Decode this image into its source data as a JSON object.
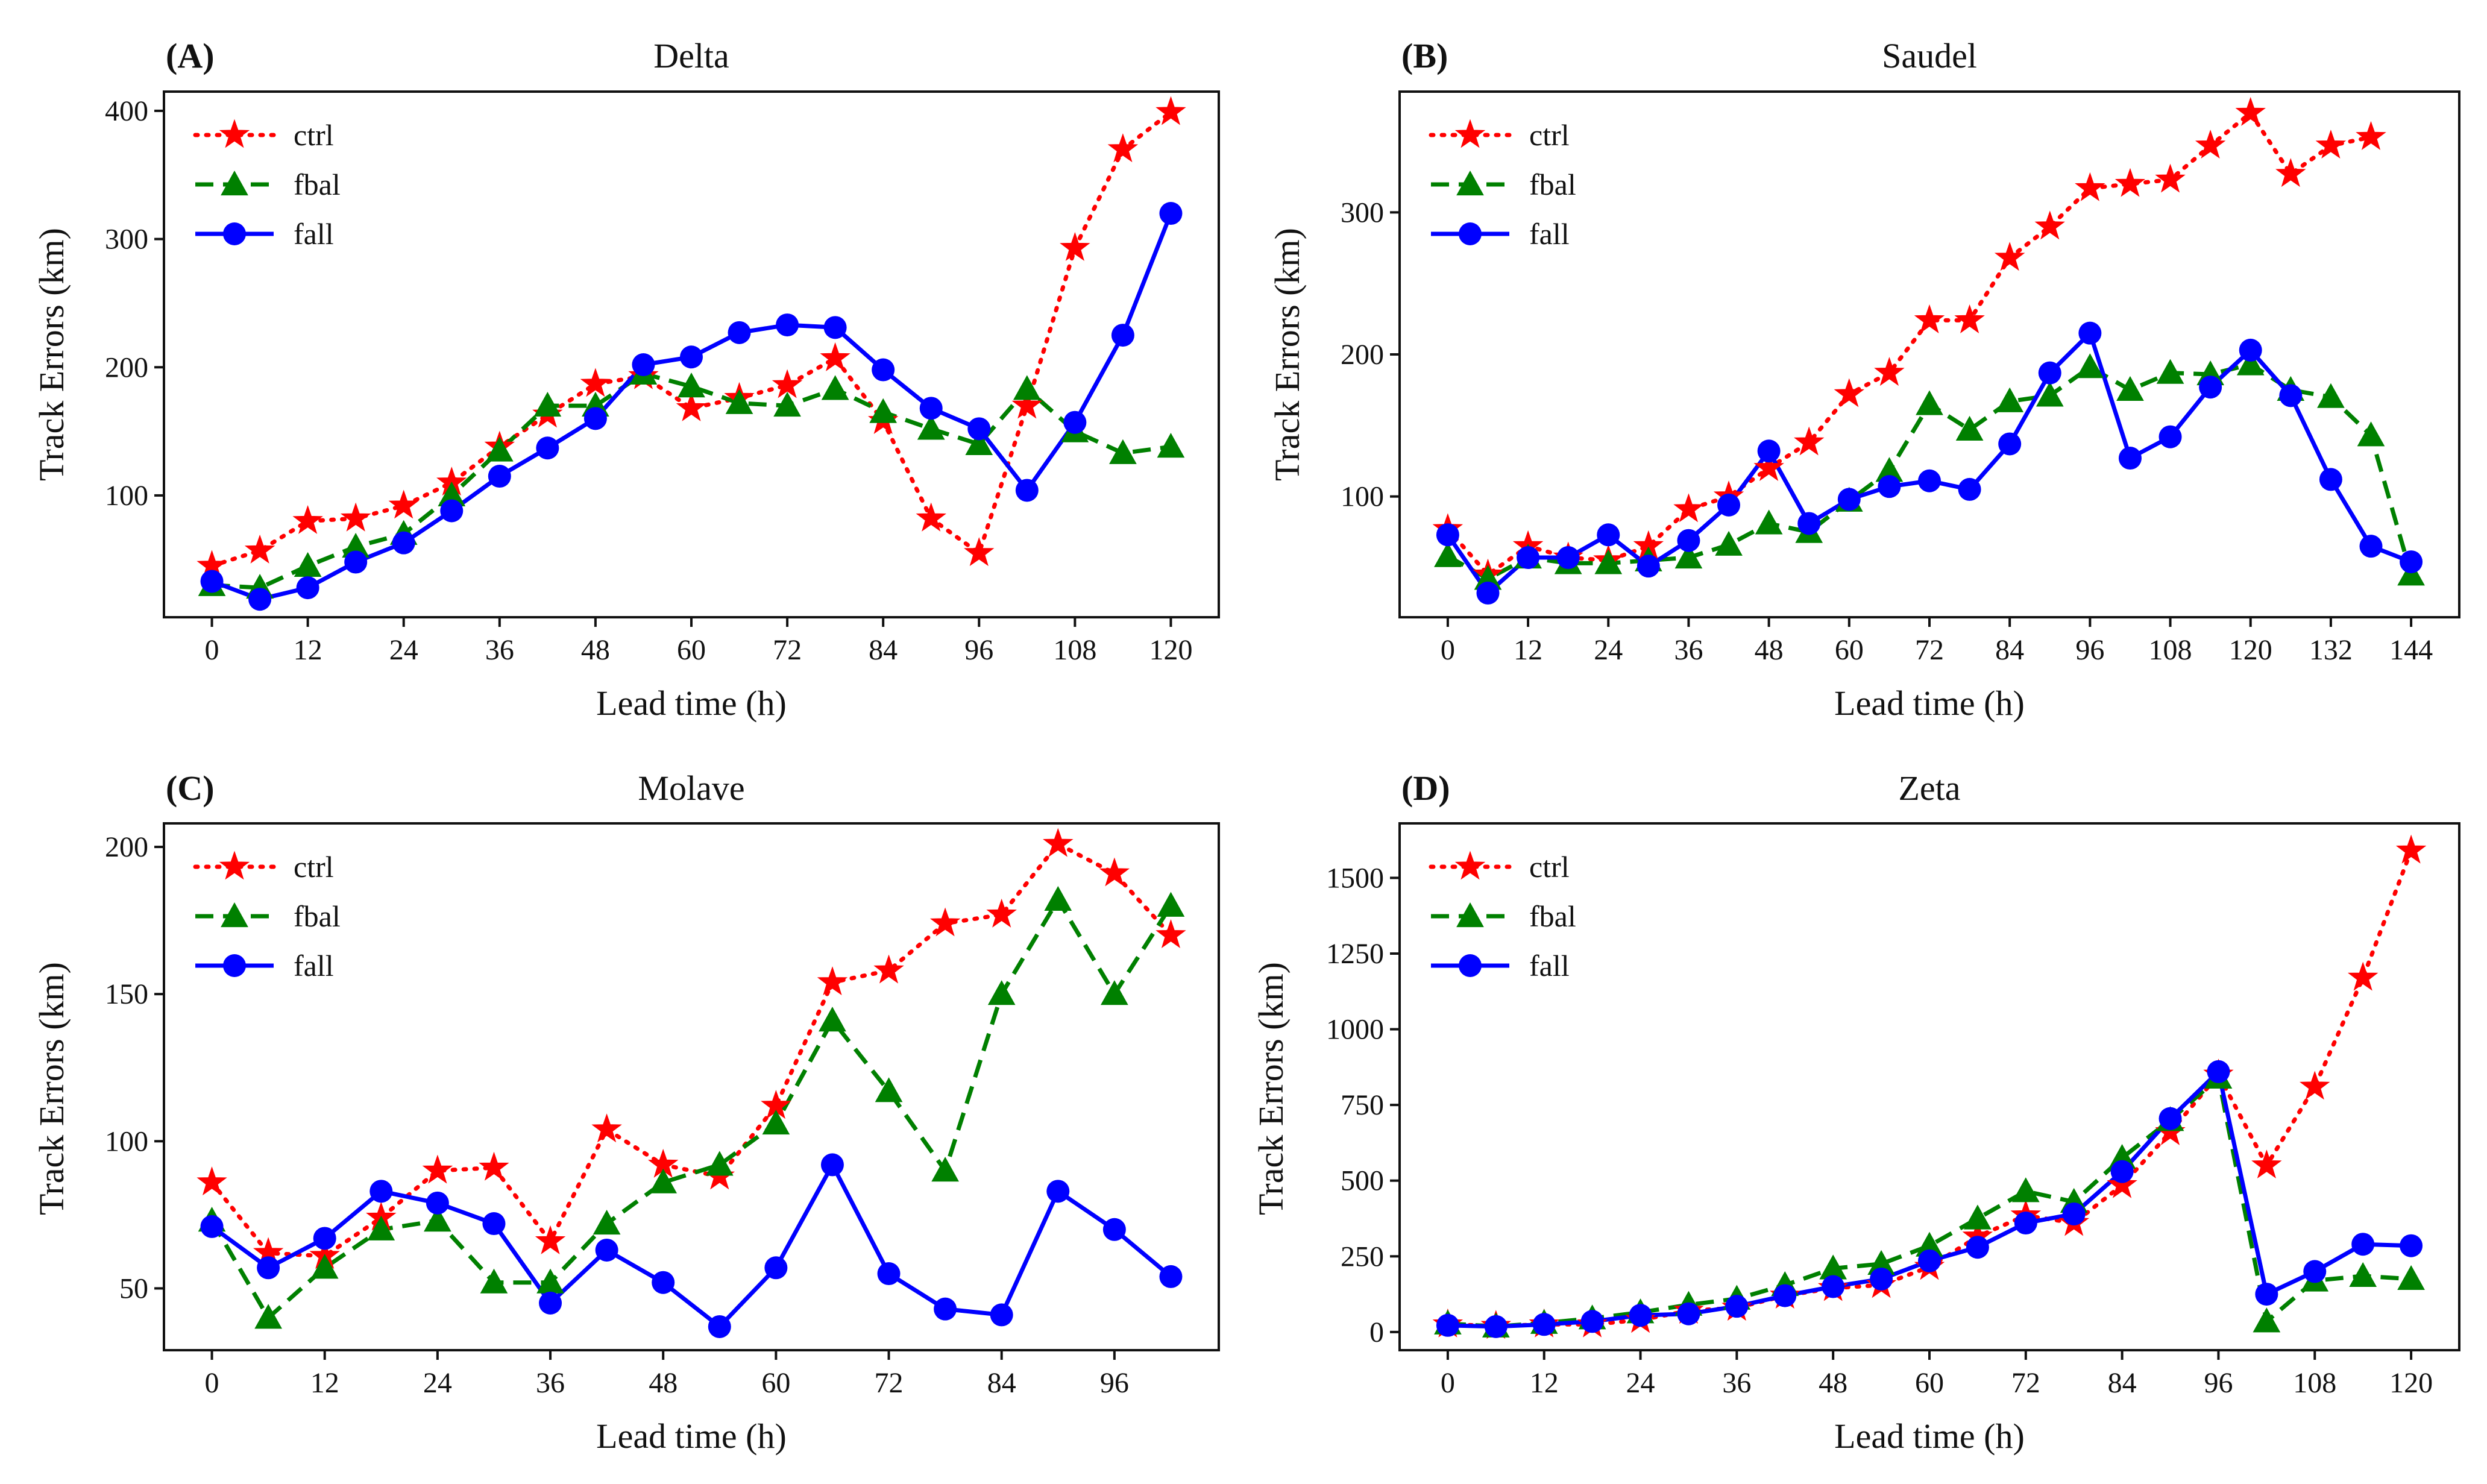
{
  "chart_data": [
    {
      "panel": "(A)",
      "title": "Delta",
      "type": "line",
      "xlabel": "Lead time (h)",
      "ylabel": "Track Errors (km)",
      "xlim": [
        -6,
        126
      ],
      "ylim": [
        5,
        415
      ],
      "xticks": [
        0,
        12,
        24,
        36,
        48,
        60,
        72,
        84,
        96,
        108,
        120
      ],
      "yticks": [
        100,
        200,
        300,
        400
      ],
      "x": [
        0,
        6,
        12,
        18,
        24,
        30,
        36,
        42,
        48,
        54,
        60,
        66,
        72,
        78,
        84,
        90,
        96,
        102,
        108,
        114,
        120
      ],
      "legend_position": "top-left",
      "series": [
        {
          "name": "ctrl",
          "color": "#ff0000",
          "marker": "star",
          "style": "dotted",
          "values": [
            45,
            57,
            80,
            82,
            92,
            110,
            138,
            163,
            187,
            193,
            168,
            176,
            186,
            207,
            158,
            82,
            55,
            170,
            293,
            370,
            399
          ]
        },
        {
          "name": "fbal",
          "color": "#008000",
          "marker": "triangle",
          "style": "dashed",
          "values": [
            30,
            28,
            45,
            60,
            70,
            100,
            135,
            170,
            170,
            195,
            185,
            172,
            170,
            183,
            165,
            152,
            140,
            183,
            150,
            133,
            138
          ]
        },
        {
          "name": "fall",
          "color": "#0000ff",
          "marker": "circle",
          "style": "solid",
          "values": [
            33,
            19,
            28,
            48,
            63,
            88,
            115,
            137,
            160,
            202,
            208,
            227,
            233,
            231,
            198,
            168,
            152,
            104,
            157,
            225,
            320
          ]
        }
      ]
    },
    {
      "panel": "(B)",
      "title": "Saudel",
      "type": "line",
      "xlabel": "Lead time (h)",
      "ylabel": "Track Errors (km)",
      "xlim": [
        -7.2,
        151.2
      ],
      "ylim": [
        15,
        385
      ],
      "xticks": [
        0,
        12,
        24,
        36,
        48,
        60,
        72,
        84,
        96,
        108,
        120,
        132,
        144
      ],
      "yticks": [
        100,
        200,
        300
      ],
      "x": [
        0,
        6,
        12,
        18,
        24,
        30,
        36,
        42,
        48,
        54,
        60,
        66,
        72,
        78,
        84,
        90,
        96,
        102,
        108,
        114,
        120,
        126,
        132,
        138,
        144
      ],
      "legend_position": "top-left",
      "series": [
        {
          "name": "ctrl",
          "color": "#ff0000",
          "marker": "star",
          "style": "dotted",
          "values": [
            77,
            45,
            65,
            57,
            55,
            65,
            91,
            100,
            120,
            138,
            172,
            187,
            224,
            224,
            268,
            290,
            317,
            320,
            323,
            347,
            370,
            327,
            347,
            353,
            null
          ]
        },
        {
          "name": "fbal",
          "color": "#008000",
          "marker": "triangle",
          "style": "dashed",
          "values": [
            58,
            42,
            57,
            53,
            53,
            55,
            57,
            66,
            81,
            75,
            97,
            118,
            165,
            147,
            167,
            171,
            191,
            175,
            187,
            186,
            193,
            175,
            170,
            143,
            45
          ]
        },
        {
          "name": "fall",
          "color": "#0000ff",
          "marker": "circle",
          "style": "solid",
          "values": [
            73,
            32,
            57,
            57,
            73,
            51,
            69,
            94,
            132,
            81,
            98,
            107,
            111,
            105,
            137,
            187,
            215,
            127,
            142,
            177,
            203,
            171,
            112,
            65,
            54
          ]
        }
      ]
    },
    {
      "panel": "(C)",
      "title": "Molave",
      "type": "line",
      "xlabel": "Lead time (h)",
      "ylabel": "Track Errors (km)",
      "xlim": [
        -5.1,
        107.1
      ],
      "ylim": [
        29,
        208
      ],
      "xticks": [
        0,
        12,
        24,
        36,
        48,
        60,
        72,
        84,
        96
      ],
      "yticks": [
        50,
        100,
        150,
        200
      ],
      "x": [
        0,
        6,
        12,
        18,
        24,
        30,
        36,
        42,
        48,
        54,
        60,
        66,
        72,
        78,
        84,
        90,
        96,
        102
      ],
      "legend_position": "top-left",
      "series": [
        {
          "name": "ctrl",
          "color": "#ff0000",
          "marker": "star",
          "style": "dotted",
          "values": [
            86,
            62,
            61,
            74,
            90,
            91,
            66,
            104,
            92,
            88,
            112,
            154,
            158,
            174,
            177,
            201,
            191,
            170
          ]
        },
        {
          "name": "fbal",
          "color": "#008000",
          "marker": "triangle",
          "style": "dashed",
          "values": [
            73,
            40,
            57,
            70,
            73,
            52,
            52,
            72,
            86,
            92,
            106,
            141,
            117,
            90,
            150,
            182,
            150,
            180
          ]
        },
        {
          "name": "fall",
          "color": "#0000ff",
          "marker": "circle",
          "style": "solid",
          "values": [
            71,
            57,
            67,
            83,
            79,
            72,
            45,
            63,
            52,
            37,
            57,
            92,
            55,
            43,
            41,
            83,
            70,
            54
          ]
        }
      ]
    },
    {
      "panel": "(D)",
      "title": "Zeta",
      "type": "line",
      "xlabel": "Lead time (h)",
      "ylabel": "Track Errors (km)",
      "xlim": [
        -6,
        126
      ],
      "ylim": [
        -60,
        1680
      ],
      "xticks": [
        0,
        12,
        24,
        36,
        48,
        60,
        72,
        84,
        96,
        108,
        120
      ],
      "yticks": [
        0,
        250,
        500,
        750,
        1000,
        1250,
        1500
      ],
      "x": [
        0,
        6,
        12,
        18,
        24,
        30,
        36,
        42,
        48,
        54,
        60,
        66,
        72,
        78,
        84,
        90,
        96,
        102,
        108,
        114,
        120
      ],
      "legend_position": "top-left",
      "series": [
        {
          "name": "ctrl",
          "color": "#ff0000",
          "marker": "star",
          "style": "dotted",
          "values": [
            25,
            20,
            25,
            25,
            40,
            70,
            80,
            120,
            145,
            155,
            215,
            315,
            385,
            360,
            485,
            660,
            850,
            550,
            810,
            1170,
            1590
          ]
        },
        {
          "name": "fbal",
          "color": "#008000",
          "marker": "triangle",
          "style": "dashed",
          "values": [
            28,
            18,
            30,
            45,
            65,
            90,
            110,
            155,
            210,
            225,
            285,
            375,
            465,
            430,
            575,
            700,
            840,
            35,
            170,
            185,
            175
          ]
        },
        {
          "name": "fall",
          "color": "#0000ff",
          "marker": "circle",
          "style": "solid",
          "values": [
            22,
            18,
            25,
            35,
            55,
            60,
            85,
            120,
            150,
            175,
            235,
            280,
            360,
            390,
            530,
            705,
            860,
            125,
            200,
            290,
            285
          ]
        }
      ]
    }
  ]
}
